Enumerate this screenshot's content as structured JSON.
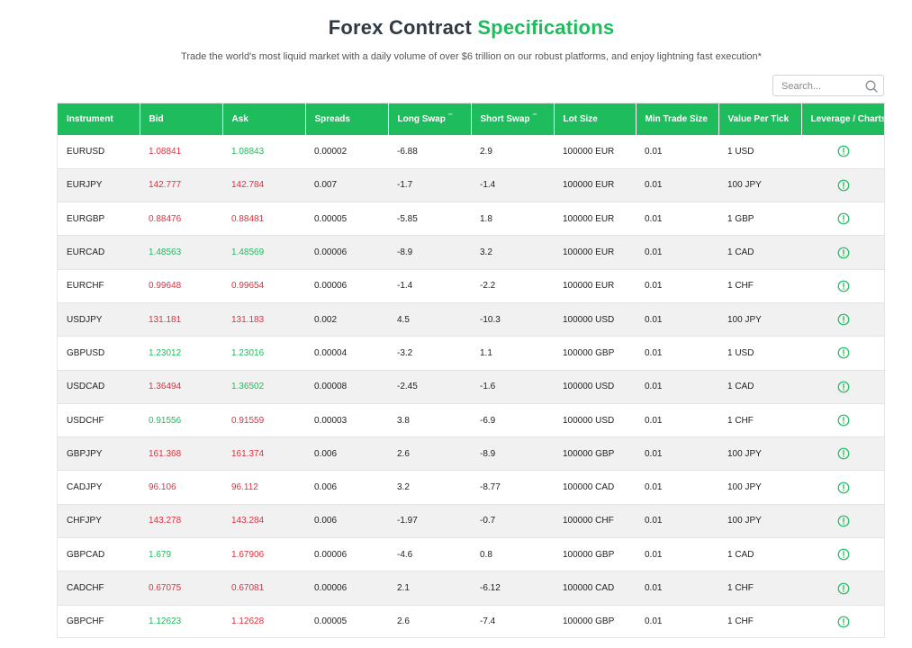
{
  "header": {
    "title_main": "Forex Contract",
    "title_accent": "Specifications",
    "subtitle": "Trade the world's most liquid market with a daily volume of over $6 trillion on our robust platforms, and enjoy lightning fast execution*"
  },
  "search": {
    "placeholder": "Search...",
    "value": "",
    "icon": "search-icon"
  },
  "colors": {
    "accent": "#1fbc5e",
    "price_up": "#1fbc5e",
    "price_down": "#e0313e",
    "title": "#2f3a45"
  },
  "table": {
    "columns": [
      "Instrument",
      "Bid",
      "Ask",
      "Spreads",
      "Long Swap",
      "Short Swap",
      "Lot Size",
      "Min Trade Size",
      "Value Per Tick",
      "Leverage / Charts"
    ],
    "sortable_marker": "ˆˆ",
    "leverage_icon": "info-circle-icon",
    "rows": [
      {
        "instrument": "EURUSD",
        "bid": "1.08841",
        "bid_dir": "down",
        "ask": "1.08843",
        "ask_dir": "up",
        "spreads": "0.00002",
        "long_swap": "-6.88",
        "short_swap": "2.9",
        "lot_size": "100000 EUR",
        "min_trade": "0.01",
        "value_per_tick": "1 USD"
      },
      {
        "instrument": "EURJPY",
        "bid": "142.777",
        "bid_dir": "down",
        "ask": "142.784",
        "ask_dir": "down",
        "spreads": "0.007",
        "long_swap": "-1.7",
        "short_swap": "-1.4",
        "lot_size": "100000 EUR",
        "min_trade": "0.01",
        "value_per_tick": "100 JPY"
      },
      {
        "instrument": "EURGBP",
        "bid": "0.88476",
        "bid_dir": "down",
        "ask": "0.88481",
        "ask_dir": "down",
        "spreads": "0.00005",
        "long_swap": "-5.85",
        "short_swap": "1.8",
        "lot_size": "100000 EUR",
        "min_trade": "0.01",
        "value_per_tick": "1 GBP"
      },
      {
        "instrument": "EURCAD",
        "bid": "1.48563",
        "bid_dir": "up",
        "ask": "1.48569",
        "ask_dir": "up",
        "spreads": "0.00006",
        "long_swap": "-8.9",
        "short_swap": "3.2",
        "lot_size": "100000 EUR",
        "min_trade": "0.01",
        "value_per_tick": "1 CAD"
      },
      {
        "instrument": "EURCHF",
        "bid": "0.99648",
        "bid_dir": "down",
        "ask": "0.99654",
        "ask_dir": "down",
        "spreads": "0.00006",
        "long_swap": "-1.4",
        "short_swap": "-2.2",
        "lot_size": "100000 EUR",
        "min_trade": "0.01",
        "value_per_tick": "1 CHF"
      },
      {
        "instrument": "USDJPY",
        "bid": "131.181",
        "bid_dir": "down",
        "ask": "131.183",
        "ask_dir": "down",
        "spreads": "0.002",
        "long_swap": "4.5",
        "short_swap": "-10.3",
        "lot_size": "100000 USD",
        "min_trade": "0.01",
        "value_per_tick": "100 JPY"
      },
      {
        "instrument": "GBPUSD",
        "bid": "1.23012",
        "bid_dir": "up",
        "ask": "1.23016",
        "ask_dir": "up",
        "spreads": "0.00004",
        "long_swap": "-3.2",
        "short_swap": "1.1",
        "lot_size": "100000 GBP",
        "min_trade": "0.01",
        "value_per_tick": "1 USD"
      },
      {
        "instrument": "USDCAD",
        "bid": "1.36494",
        "bid_dir": "down",
        "ask": "1.36502",
        "ask_dir": "up",
        "spreads": "0.00008",
        "long_swap": "-2.45",
        "short_swap": "-1.6",
        "lot_size": "100000 USD",
        "min_trade": "0.01",
        "value_per_tick": "1 CAD"
      },
      {
        "instrument": "USDCHF",
        "bid": "0.91556",
        "bid_dir": "up",
        "ask": "0.91559",
        "ask_dir": "down",
        "spreads": "0.00003",
        "long_swap": "3.8",
        "short_swap": "-6.9",
        "lot_size": "100000 USD",
        "min_trade": "0.01",
        "value_per_tick": "1 CHF"
      },
      {
        "instrument": "GBPJPY",
        "bid": "161.368",
        "bid_dir": "down",
        "ask": "161.374",
        "ask_dir": "down",
        "spreads": "0.006",
        "long_swap": "2.6",
        "short_swap": "-8.9",
        "lot_size": "100000 GBP",
        "min_trade": "0.01",
        "value_per_tick": "100 JPY"
      },
      {
        "instrument": "CADJPY",
        "bid": "96.106",
        "bid_dir": "down",
        "ask": "96.112",
        "ask_dir": "down",
        "spreads": "0.006",
        "long_swap": "3.2",
        "short_swap": "-8.77",
        "lot_size": "100000 CAD",
        "min_trade": "0.01",
        "value_per_tick": "100 JPY"
      },
      {
        "instrument": "CHFJPY",
        "bid": "143.278",
        "bid_dir": "down",
        "ask": "143.284",
        "ask_dir": "down",
        "spreads": "0.006",
        "long_swap": "-1.97",
        "short_swap": "-0.7",
        "lot_size": "100000 CHF",
        "min_trade": "0.01",
        "value_per_tick": "100 JPY"
      },
      {
        "instrument": "GBPCAD",
        "bid": "1.679",
        "bid_dir": "up",
        "ask": "1.67906",
        "ask_dir": "down",
        "spreads": "0.00006",
        "long_swap": "-4.6",
        "short_swap": "0.8",
        "lot_size": "100000 GBP",
        "min_trade": "0.01",
        "value_per_tick": "1 CAD"
      },
      {
        "instrument": "CADCHF",
        "bid": "0.67075",
        "bid_dir": "down",
        "ask": "0.67081",
        "ask_dir": "down",
        "spreads": "0.00006",
        "long_swap": "2.1",
        "short_swap": "-6.12",
        "lot_size": "100000 CAD",
        "min_trade": "0.01",
        "value_per_tick": "1 CHF"
      },
      {
        "instrument": "GBPCHF",
        "bid": "1.12623",
        "bid_dir": "up",
        "ask": "1.12628",
        "ask_dir": "down",
        "spreads": "0.00005",
        "long_swap": "2.6",
        "short_swap": "-7.4",
        "lot_size": "100000 GBP",
        "min_trade": "0.01",
        "value_per_tick": "1 CHF"
      }
    ]
  }
}
